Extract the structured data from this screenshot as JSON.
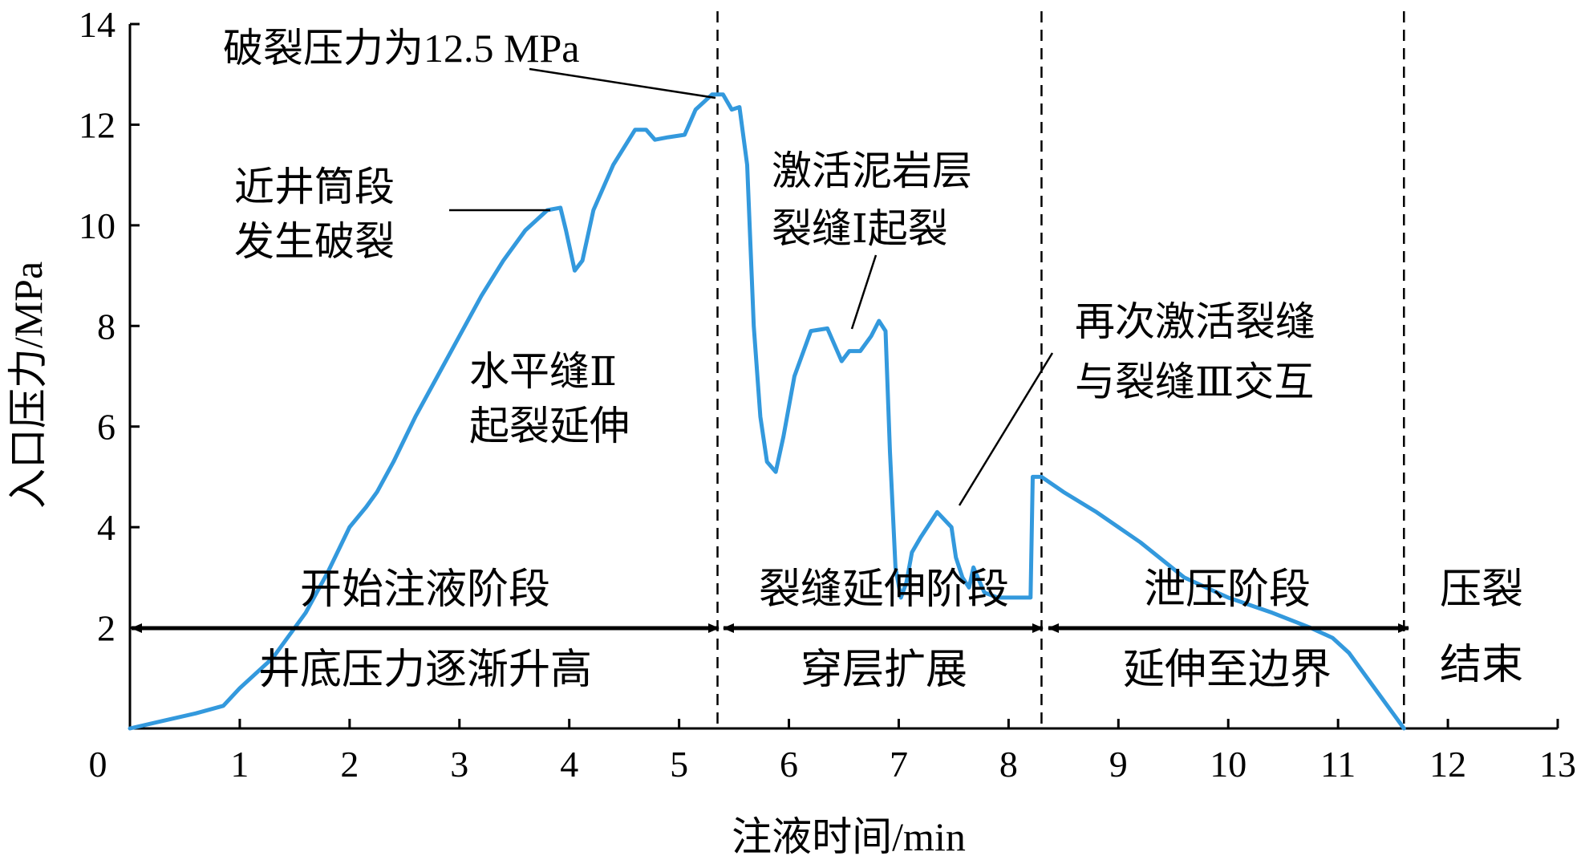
{
  "chart_data": {
    "type": "line",
    "title": "",
    "xlabel": "注液时间/min",
    "ylabel": "入口压力/MPa",
    "xlim": [
      0,
      13
    ],
    "ylim": [
      0,
      14
    ],
    "x_ticks": [
      "0",
      "1",
      "2",
      "3",
      "4",
      "5",
      "6",
      "7",
      "8",
      "9",
      "10",
      "11",
      "12",
      "13"
    ],
    "y_ticks": [
      "2",
      "4",
      "6",
      "8",
      "10",
      "12",
      "14"
    ],
    "grid": false,
    "line_color": "#3399dd",
    "series": [
      {
        "name": "",
        "x": [
          0,
          0.3,
          0.6,
          0.85,
          1.0,
          1.3,
          1.6,
          1.8,
          2.0,
          2.15,
          2.25,
          2.4,
          2.6,
          2.8,
          3.0,
          3.2,
          3.4,
          3.6,
          3.8,
          3.92,
          3.97,
          4.05,
          4.12,
          4.22,
          4.4,
          4.6,
          4.7,
          4.78,
          4.9,
          5.05,
          5.15,
          5.3,
          5.4,
          5.48,
          5.55,
          5.62,
          5.68,
          5.74,
          5.8,
          5.88,
          5.95,
          6.05,
          6.2,
          6.35,
          6.48,
          6.55,
          6.65,
          6.75,
          6.82,
          6.88,
          6.92,
          6.97,
          7.02,
          7.07,
          7.12,
          7.2,
          7.35,
          7.48,
          7.52,
          7.58,
          7.64,
          7.68,
          7.72,
          7.78,
          7.9,
          8.05,
          8.2,
          8.22,
          8.3,
          8.5,
          8.8,
          9.2,
          9.6,
          10.0,
          10.4,
          10.75,
          10.95,
          11.1,
          11.3,
          11.5,
          11.6
        ],
        "y": [
          0,
          0.15,
          0.3,
          0.45,
          0.8,
          1.4,
          2.3,
          3.1,
          4.0,
          4.4,
          4.7,
          5.3,
          6.2,
          7.0,
          7.8,
          8.6,
          9.3,
          9.9,
          10.3,
          10.35,
          9.9,
          9.1,
          9.3,
          10.3,
          11.2,
          11.9,
          11.9,
          11.7,
          11.75,
          11.8,
          12.3,
          12.6,
          12.6,
          12.3,
          12.35,
          11.2,
          8.0,
          6.2,
          5.3,
          5.1,
          5.8,
          7.0,
          7.9,
          7.95,
          7.3,
          7.5,
          7.5,
          7.8,
          8.1,
          7.9,
          5.5,
          3.2,
          2.6,
          2.9,
          3.5,
          3.8,
          4.3,
          4.0,
          3.4,
          3.0,
          2.8,
          3.2,
          3.0,
          2.7,
          2.6,
          2.6,
          2.6,
          5.0,
          5.0,
          4.7,
          4.3,
          3.7,
          3.0,
          2.6,
          2.3,
          2.0,
          1.8,
          1.5,
          0.9,
          0.3,
          0.0
        ]
      }
    ],
    "dividers_x": [
      5.35,
      8.3,
      11.6
    ],
    "annotations": [
      {
        "text": "破裂压力为12.5 MPa"
      },
      {
        "lines": [
          "近井筒段",
          "发生破裂"
        ]
      },
      {
        "lines": [
          "水平缝Ⅱ",
          "起裂延伸"
        ]
      },
      {
        "lines": [
          "激活泥岩层",
          "裂缝Ⅰ起裂"
        ]
      },
      {
        "lines": [
          "再次激活裂缝",
          "与裂缝Ⅲ交互"
        ]
      }
    ],
    "stages": [
      {
        "top": "开始注液阶段",
        "bottom": "井底压力逐渐升高"
      },
      {
        "top": "裂缝延伸阶段",
        "bottom": "穿层扩展"
      },
      {
        "top": "泄压阶段",
        "bottom": "延伸至边界"
      },
      {
        "top": "压裂",
        "bottom": "结束"
      }
    ]
  }
}
